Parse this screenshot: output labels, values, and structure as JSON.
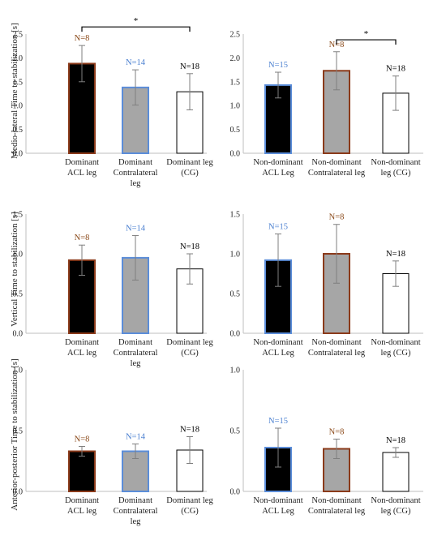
{
  "y_labels": {
    "row1": "Medio-lateral Time to stabilization [s]",
    "row2": "Vertical Time to stabilization [s]",
    "row3": "Anterior-posterior Time to stabilization [s]"
  },
  "colors": {
    "acl_fill": "#000000",
    "contra_fill": "#a6a6a6",
    "control_fill": "#ffffff",
    "dominant_acl_border": "#8b3a1a",
    "dominant_contra_border": "#5b8dd9",
    "nondom_acl_border": "#5b8dd9",
    "nondom_contra_border": "#8b3a1a",
    "control_border": "#000000",
    "brown_label": "#8b4a1a",
    "blue_label": "#4a7fd0",
    "black_label": "#000000"
  },
  "chart_data": [
    {
      "id": "ml-dominant",
      "type": "bar",
      "title": "",
      "ylim": [
        0,
        2.5
      ],
      "yticks": [
        "0.0",
        "0.5",
        "1.0",
        "1.5",
        "2.0",
        "2.5"
      ],
      "categories": [
        "Dominant\nACL leg",
        "Dominant\nContralateral\nleg",
        "Dominant leg\n(CG)"
      ],
      "values": [
        1.88,
        1.38,
        1.29
      ],
      "errors": [
        0.38,
        0.37,
        0.38
      ],
      "n_labels": [
        "N=8",
        "N=14",
        "N=18"
      ],
      "significance": {
        "from": 0,
        "to": 2,
        "label": "*",
        "level": 2.65
      }
    },
    {
      "id": "ml-nondominant",
      "type": "bar",
      "title": "",
      "ylim": [
        0,
        2.5
      ],
      "yticks": [
        "0.0",
        "0.5",
        "1.0",
        "1.5",
        "2.0",
        "2.5"
      ],
      "categories": [
        "Non-dominant\nACL Leg",
        "Non-dominant\nContralateral leg",
        "Non-dominant\nleg (CG)"
      ],
      "values": [
        1.43,
        1.73,
        1.26
      ],
      "errors": [
        0.27,
        0.4,
        0.36
      ],
      "n_labels": [
        "N=15",
        "N=8",
        "N=18"
      ],
      "significance": {
        "from": 1,
        "to": 2,
        "label": "*",
        "level": 2.38
      }
    },
    {
      "id": "v-dominant",
      "type": "bar",
      "title": "",
      "ylim": [
        0,
        1.5
      ],
      "yticks": [
        "0.0",
        "0.5",
        "1.0",
        "1.5"
      ],
      "categories": [
        "Dominant\nACL leg",
        "Dominant\nContralateral\nleg",
        "Dominant leg\n(CG)"
      ],
      "values": [
        0.92,
        0.95,
        0.81
      ],
      "errors": [
        0.19,
        0.28,
        0.19
      ],
      "n_labels": [
        "N=8",
        "N=14",
        "N=18"
      ]
    },
    {
      "id": "v-nondominant",
      "type": "bar",
      "title": "",
      "ylim": [
        0,
        1.5
      ],
      "yticks": [
        "0.0",
        "0.5",
        "1.0",
        "1.5"
      ],
      "categories": [
        "Non-dominant\nACL Leg",
        "Non-dominant\nContralateral leg",
        "Non-dominant\nleg (CG)"
      ],
      "values": [
        0.92,
        1.0,
        0.75
      ],
      "errors": [
        0.33,
        0.37,
        0.16
      ],
      "n_labels": [
        "N=15",
        "N=8",
        "N=18"
      ]
    },
    {
      "id": "ap-dominant",
      "type": "bar",
      "title": "",
      "ylim": [
        0,
        1.0
      ],
      "yticks": [
        "0.0",
        "0.5",
        "1.0"
      ],
      "categories": [
        "Dominant\nACL leg",
        "Dominant\nContralateral\nleg",
        "Dominant leg\n(CG)"
      ],
      "values": [
        0.33,
        0.33,
        0.34
      ],
      "errors": [
        0.04,
        0.06,
        0.11
      ],
      "n_labels": [
        "N=8",
        "N=14",
        "N=18"
      ]
    },
    {
      "id": "ap-nondominant",
      "type": "bar",
      "title": "",
      "ylim": [
        0,
        1.0
      ],
      "yticks": [
        "0.0",
        "0.5",
        "1.0"
      ],
      "categories": [
        "Non-dominant\nACL Leg",
        "Non-dominant\nContralateral leg",
        "Non-dominant\nleg (CG)"
      ],
      "values": [
        0.36,
        0.35,
        0.32
      ],
      "errors": [
        0.16,
        0.08,
        0.04
      ],
      "n_labels": [
        "N=15",
        "N=8",
        "N=18"
      ]
    }
  ]
}
